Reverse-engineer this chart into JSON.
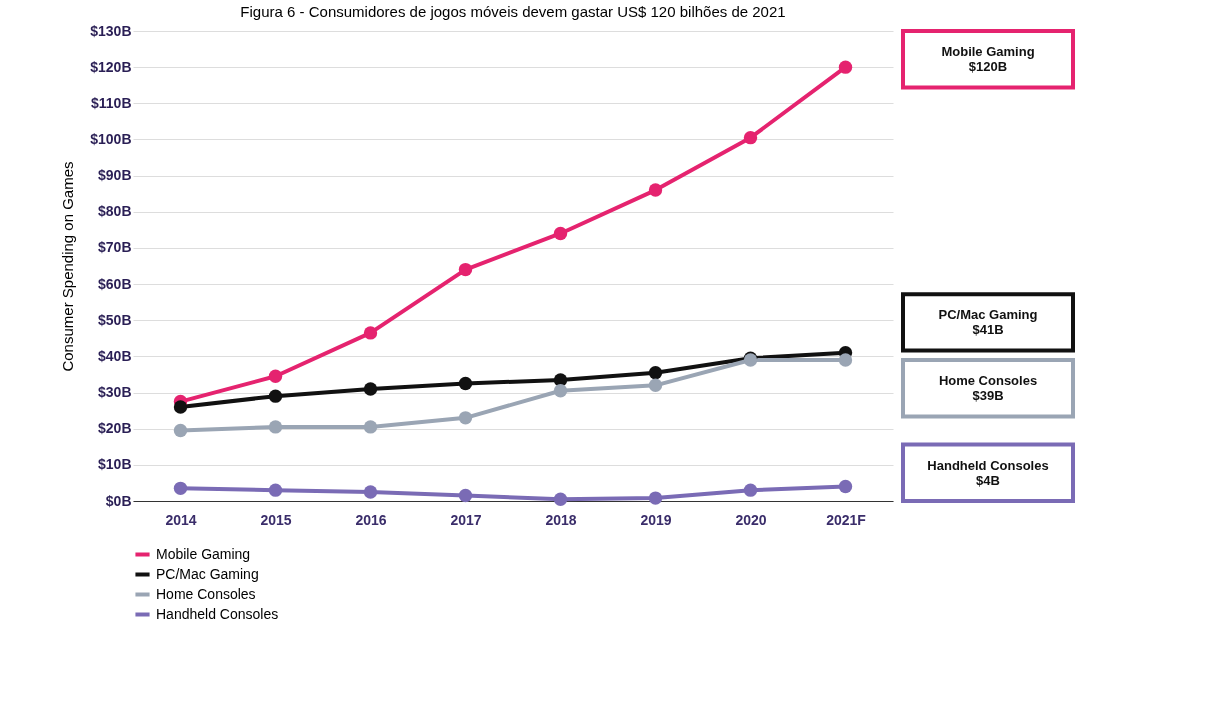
{
  "chart_data": {
    "type": "line",
    "title": "Figura 6 - Consumidores de jogos móveis devem gastar US$ 120 bilhões de 2021",
    "ylabel": "Consumer Spending on Games",
    "categories": [
      "2014",
      "2015",
      "2016",
      "2017",
      "2018",
      "2019",
      "2020",
      "2021F"
    ],
    "series": [
      {
        "name": "Mobile Gaming",
        "color": "#e5236f",
        "values": [
          27.5,
          34.5,
          46.5,
          64,
          74,
          86,
          100.5,
          120
        ]
      },
      {
        "name": "PC/Mac Gaming",
        "color": "#111111",
        "values": [
          26,
          29,
          31,
          32.5,
          33.5,
          35.5,
          39.5,
          41
        ]
      },
      {
        "name": "Home Consoles",
        "color": "#9aa5b4",
        "values": [
          19.5,
          20.5,
          20.5,
          23,
          30.5,
          32,
          39,
          39
        ]
      },
      {
        "name": "Handheld Consoles",
        "color": "#7a6bb5",
        "values": [
          3.5,
          3,
          2.5,
          1.5,
          0.5,
          0.8,
          3,
          4
        ]
      }
    ],
    "ylim": [
      0,
      130
    ],
    "yticks": [
      {
        "value": 0,
        "label": "$0B"
      },
      {
        "value": 10,
        "label": "$10B"
      },
      {
        "value": 20,
        "label": "$20B"
      },
      {
        "value": 30,
        "label": "$30B"
      },
      {
        "value": 40,
        "label": "$40B"
      },
      {
        "value": 50,
        "label": "$50B"
      },
      {
        "value": 60,
        "label": "$60B"
      },
      {
        "value": 70,
        "label": "$70B"
      },
      {
        "value": 80,
        "label": "$80B"
      },
      {
        "value": 90,
        "label": "$90B"
      },
      {
        "value": 100,
        "label": "$100B"
      },
      {
        "value": 110,
        "label": "$110B"
      },
      {
        "value": 120,
        "label": "$120B"
      },
      {
        "value": 130,
        "label": "$130B"
      }
    ],
    "annotations": [
      "Mobile Gaming\n$120B",
      "PC/Mac Gaming\n$41B",
      "Home Consoles\n$39B",
      "Handheld Consoles\n$4B"
    ],
    "grid": "y",
    "legend": "bottom left",
    "marker": "circle",
    "line_style": "solid"
  }
}
